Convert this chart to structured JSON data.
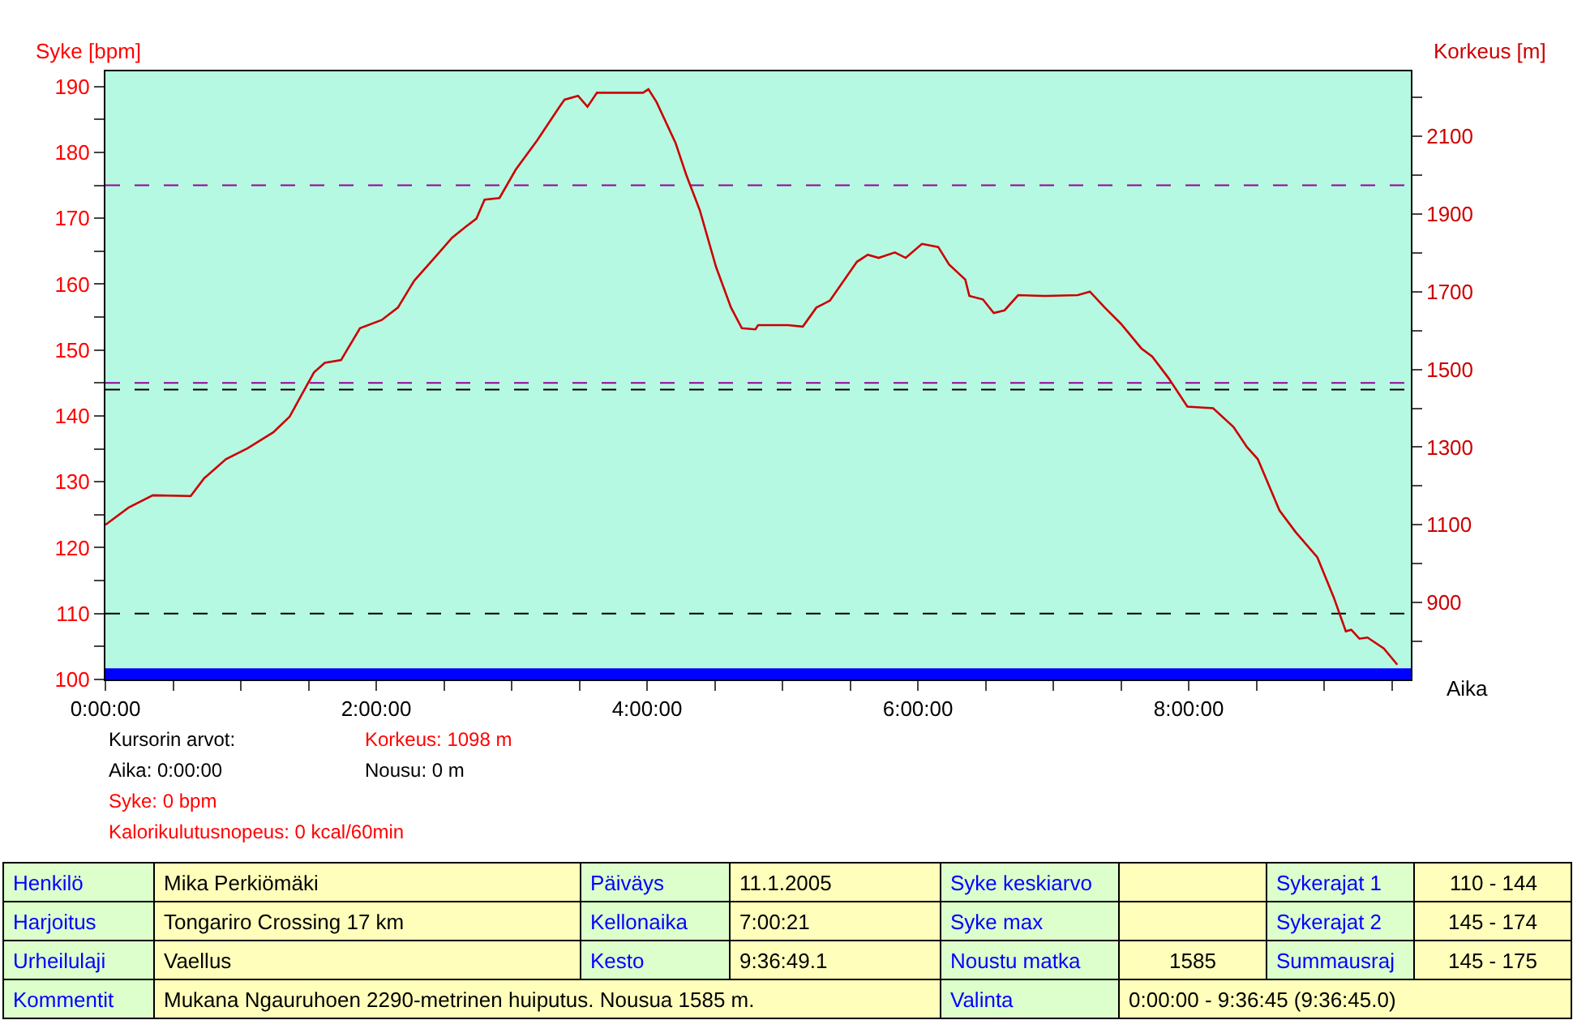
{
  "chart_data": {
    "type": "line",
    "xlabel": "Aika",
    "ylabel": "Syke [bpm]",
    "y2label": "Korkeus [m]",
    "xlim": [
      0,
      9.64
    ],
    "xticks": [
      {
        "value": 0,
        "label": "0:00:00"
      },
      {
        "value": 0.5,
        "label": null
      },
      {
        "value": 1,
        "label": null
      },
      {
        "value": 1.5,
        "label": null
      },
      {
        "value": 2,
        "label": "2:00:00"
      },
      {
        "value": 2.5,
        "label": null
      },
      {
        "value": 3,
        "label": null
      },
      {
        "value": 3.5,
        "label": null
      },
      {
        "value": 4,
        "label": "4:00:00"
      },
      {
        "value": 4.5,
        "label": null
      },
      {
        "value": 5,
        "label": null
      },
      {
        "value": 5.5,
        "label": null
      },
      {
        "value": 6,
        "label": "6:00:00"
      },
      {
        "value": 6.5,
        "label": null
      },
      {
        "value": 7,
        "label": null
      },
      {
        "value": 7.5,
        "label": null
      },
      {
        "value": 8,
        "label": "8:00:00"
      },
      {
        "value": 8.5,
        "label": null
      },
      {
        "value": 9,
        "label": null
      },
      {
        "value": 9.5,
        "label": null
      }
    ],
    "ylim": [
      100,
      192.3
    ],
    "yticks": [
      100,
      {
        "value": 105,
        "label": null
      },
      110,
      {
        "value": 115,
        "label": null
      },
      120,
      {
        "value": 125,
        "label": null
      },
      130,
      {
        "value": 135,
        "label": null
      },
      140,
      {
        "value": 145,
        "label": null
      },
      150,
      {
        "value": 155,
        "label": null
      },
      160,
      {
        "value": 165,
        "label": null
      },
      170,
      {
        "value": 175,
        "label": null
      },
      180,
      {
        "value": 185,
        "label": null
      },
      190
    ],
    "y2lim": [
      702,
      2267
    ],
    "y2ticks": [
      {
        "value": 800,
        "label": null
      },
      900,
      {
        "value": 1000,
        "label": null
      },
      1100,
      {
        "value": 1200,
        "label": null
      },
      1300,
      {
        "value": 1400,
        "label": null
      },
      1500,
      {
        "value": 1600,
        "label": null
      },
      1700,
      {
        "value": 1800,
        "label": null
      },
      1900,
      {
        "value": 2000,
        "label": null
      },
      2100,
      {
        "value": 2200,
        "label": null
      }
    ],
    "grid": false,
    "marker": "none",
    "line_style": "solid",
    "series": [
      {
        "axis": "y2",
        "color": "#cc0000",
        "x": [
          0,
          0.17,
          0.35,
          0.63,
          0.73,
          0.89,
          1.05,
          1.24,
          1.36,
          1.44,
          1.54,
          1.62,
          1.74,
          1.88,
          2.04,
          2.16,
          2.28,
          2.44,
          2.56,
          2.66,
          2.74,
          2.8,
          2.91,
          3.03,
          3.19,
          3.35,
          3.39,
          3.49,
          3.56,
          3.63,
          3.97,
          4.01,
          4.07,
          4.21,
          4.29,
          4.39,
          4.51,
          4.62,
          4.7,
          4.8,
          4.82,
          5.04,
          5.15,
          5.25,
          5.35,
          5.55,
          5.63,
          5.71,
          5.83,
          5.91,
          6.03,
          6.15,
          6.23,
          6.35,
          6.38,
          6.48,
          6.56,
          6.64,
          6.74,
          6.94,
          7.18,
          7.27,
          7.38,
          7.5,
          7.65,
          7.73,
          7.85,
          7.99,
          8.18,
          8.33,
          8.43,
          8.51,
          8.67,
          8.79,
          8.95,
          9.07,
          9.16,
          9.2,
          9.26,
          9.32,
          9.44,
          9.54
        ],
        "values": [
          1100,
          1144,
          1176,
          1174,
          1220,
          1269,
          1297,
          1338,
          1378,
          1429,
          1492,
          1517,
          1524,
          1606,
          1627,
          1659,
          1728,
          1791,
          1839,
          1867,
          1888,
          1937,
          1941,
          2014,
          2090,
          2174,
          2194,
          2204,
          2176,
          2212,
          2212,
          2221,
          2188,
          2083,
          2000,
          1909,
          1763,
          1659,
          1606,
          1603,
          1614,
          1614,
          1610,
          1659,
          1677,
          1777,
          1795,
          1787,
          1801,
          1787,
          1823,
          1815,
          1770,
          1731,
          1689,
          1680,
          1645,
          1652,
          1691,
          1689,
          1691,
          1700,
          1659,
          1617,
          1554,
          1533,
          1478,
          1404,
          1400,
          1352,
          1300,
          1269,
          1137,
          1081,
          1016,
          914,
          826,
          830,
          807,
          810,
          782,
          740
        ]
      }
    ],
    "ref_lines": [
      {
        "axis": "y",
        "value": 175,
        "color": "#990099",
        "line_style": "dashed"
      },
      {
        "axis": "y",
        "value": 145,
        "color": "#990099",
        "line_style": "dashed"
      },
      {
        "axis": "y",
        "value": 144,
        "color": "#000000",
        "line_style": "dashed"
      },
      {
        "axis": "y",
        "value": 110,
        "color": "#000000",
        "line_style": "dashed"
      }
    ],
    "bands": [
      {
        "axis": "y",
        "from": 100,
        "to": 101.7,
        "color": "#0000ff"
      }
    ],
    "annotations": [
      "Kursorin arvot:",
      "Korkeus: 1098 m",
      "Aika: 0:00:00",
      "Nousu: 0 m",
      "Syke: 0 bpm",
      "Kalorikulutusnopeus: 0 kcal/60min",
      "Henkilö",
      "Mika Perkiömäki",
      "Päiväys",
      "11.1.2005",
      "Syke keskiarvo",
      "Sykerajat 1",
      "110 - 144",
      "Harjoitus",
      "Tongariro Crossing 17 km",
      "Kellonaika",
      "7:00:21",
      "Syke max",
      "Sykerajat 2",
      "145 - 174",
      "Urheilulaji",
      "Vaellus",
      "Kesto",
      "9:36:49.1",
      "Noustu matka",
      "1585",
      "Summausraj",
      "145 - 175",
      "Kommentit",
      "Mukana Ngauruhoen 2290-metrinen huiputus. Nousua 1585 m.",
      "Valinta",
      "0:00:00 - 9:36:45 (9:36:45.0)"
    ]
  }
}
